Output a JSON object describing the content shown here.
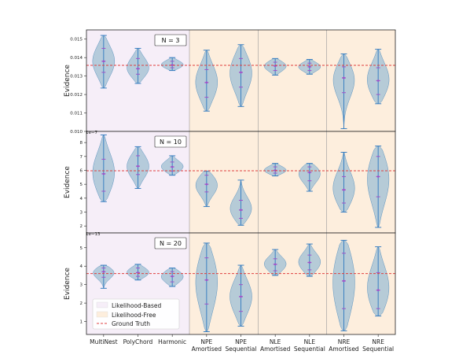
{
  "colors": {
    "likelihood_based_bg": "#f6eef8",
    "likelihood_free_bg": "#fdeedd",
    "violin_fill": "#a9c4d6",
    "violin_edge": "#5a93c0",
    "whisker": "#3a7fc1",
    "median_dot": "#a050c8",
    "ground_truth": "#e04040"
  },
  "legend": {
    "likelihood_based": "Likelihood-Based",
    "likelihood_free": "Likelihood-Free",
    "ground_truth": "Ground Truth"
  },
  "chart_data": [
    {
      "type": "violin",
      "panel_label": "N = 3",
      "ylabel": "Evidence",
      "ylim": [
        0.01,
        0.0155
      ],
      "yticks": [
        0.01,
        0.011,
        0.012,
        0.013,
        0.014,
        0.015
      ],
      "ytick_labels": [
        "0.010",
        "0.011",
        "0.012",
        "0.013",
        "0.014",
        "0.015"
      ],
      "offset_label": "",
      "ground_truth": 0.01358,
      "categories": [
        "MultiNest",
        "PolyChord",
        "Harmonic",
        "NPE\nAmortised",
        "NPE\nSequential",
        "NLE\nAmortised",
        "NLE\nSequential",
        "NRE\nAmortised",
        "NRE\nSequential"
      ],
      "series": [
        {
          "min": 0.01235,
          "q1": 0.0132,
          "median": 0.0138,
          "q3": 0.0145,
          "max": 0.0152
        },
        {
          "min": 0.0126,
          "q1": 0.0131,
          "median": 0.0134,
          "q3": 0.01395,
          "max": 0.0145
        },
        {
          "min": 0.0133,
          "q1": 0.01345,
          "median": 0.0136,
          "q3": 0.0138,
          "max": 0.014
        },
        {
          "min": 0.0111,
          "q1": 0.01185,
          "median": 0.01265,
          "q3": 0.01335,
          "max": 0.0144
        },
        {
          "min": 0.01135,
          "q1": 0.0124,
          "median": 0.0132,
          "q3": 0.01395,
          "max": 0.0147
        },
        {
          "min": 0.01305,
          "q1": 0.0133,
          "median": 0.01355,
          "q3": 0.01375,
          "max": 0.01395
        },
        {
          "min": 0.0131,
          "q1": 0.0133,
          "median": 0.0135,
          "q3": 0.0137,
          "max": 0.0139
        },
        {
          "min": 0.01015,
          "q1": 0.0121,
          "median": 0.0129,
          "q3": 0.0135,
          "max": 0.0142
        },
        {
          "min": 0.0115,
          "q1": 0.012,
          "median": 0.01275,
          "q3": 0.01345,
          "max": 0.01445
        }
      ]
    },
    {
      "type": "violin",
      "panel_label": "N = 10",
      "ylabel": "Evidence",
      "ylim": [
        1.5,
        8.8
      ],
      "yticks": [
        2,
        3,
        4,
        5,
        6,
        7,
        8
      ],
      "ytick_labels": [
        "2",
        "3",
        "4",
        "5",
        "6",
        "7",
        "8"
      ],
      "offset_label": "1e−7",
      "ground_truth": 5.97,
      "categories": [
        "MultiNest",
        "PolyChord",
        "Harmonic",
        "NPE\nAmortised",
        "NPE\nSequential",
        "NLE\nAmortised",
        "NLE\nSequential",
        "NRE\nAmortised",
        "NRE\nSequential"
      ],
      "series": [
        {
          "min": 3.75,
          "q1": 4.5,
          "median": 5.75,
          "q3": 6.8,
          "max": 8.55
        },
        {
          "min": 4.7,
          "q1": 5.7,
          "median": 6.3,
          "q3": 7.05,
          "max": 7.7
        },
        {
          "min": 5.65,
          "q1": 5.95,
          "median": 6.25,
          "q3": 6.6,
          "max": 7.05
        },
        {
          "min": 3.4,
          "q1": 4.45,
          "median": 5.0,
          "q3": 5.65,
          "max": 5.95
        },
        {
          "min": 2.05,
          "q1": 2.55,
          "median": 3.15,
          "q3": 3.85,
          "max": 5.3
        },
        {
          "min": 5.6,
          "q1": 5.8,
          "median": 6.0,
          "q3": 6.25,
          "max": 6.5
        },
        {
          "min": 4.5,
          "q1": 5.25,
          "median": 5.85,
          "q3": 6.25,
          "max": 6.5
        },
        {
          "min": 3.0,
          "q1": 3.65,
          "median": 4.6,
          "q3": 5.55,
          "max": 7.3
        },
        {
          "min": 1.9,
          "q1": 4.1,
          "median": 5.55,
          "q3": 7.0,
          "max": 7.75
        }
      ]
    },
    {
      "type": "violin",
      "panel_label": "N = 20",
      "ylabel": "Evidence",
      "ylim": [
        0.3,
        5.8
      ],
      "yticks": [
        1,
        2,
        3,
        4,
        5
      ],
      "ytick_labels": [
        "1",
        "2",
        "3",
        "4",
        "5"
      ],
      "offset_label": "1e−13",
      "ground_truth": 3.6,
      "categories": [
        "MultiNest",
        "PolyChord",
        "Harmonic",
        "NPE\nAmortised",
        "NPE\nSequential",
        "NLE\nAmortised",
        "NLE\nSequential",
        "NRE\nAmortised",
        "NRE\nSequential"
      ],
      "series": [
        {
          "min": 2.8,
          "q1": 3.4,
          "median": 3.7,
          "q3": 3.9,
          "max": 4.05
        },
        {
          "min": 3.25,
          "q1": 3.45,
          "median": 3.65,
          "q3": 3.9,
          "max": 4.1
        },
        {
          "min": 2.9,
          "q1": 3.15,
          "median": 3.45,
          "q3": 3.7,
          "max": 3.9
        },
        {
          "min": 0.45,
          "q1": 1.95,
          "median": 3.25,
          "q3": 4.45,
          "max": 5.25
        },
        {
          "min": 0.75,
          "q1": 1.55,
          "median": 2.35,
          "q3": 3.0,
          "max": 4.05
        },
        {
          "min": 3.5,
          "q1": 3.75,
          "median": 4.1,
          "q3": 4.4,
          "max": 4.9
        },
        {
          "min": 3.45,
          "q1": 3.8,
          "median": 4.2,
          "q3": 4.6,
          "max": 5.2
        },
        {
          "min": 0.5,
          "q1": 1.7,
          "median": 3.2,
          "q3": 4.7,
          "max": 5.4
        },
        {
          "min": 1.3,
          "q1": 1.7,
          "median": 2.7,
          "q3": 3.65,
          "max": 5.05
        }
      ]
    }
  ]
}
